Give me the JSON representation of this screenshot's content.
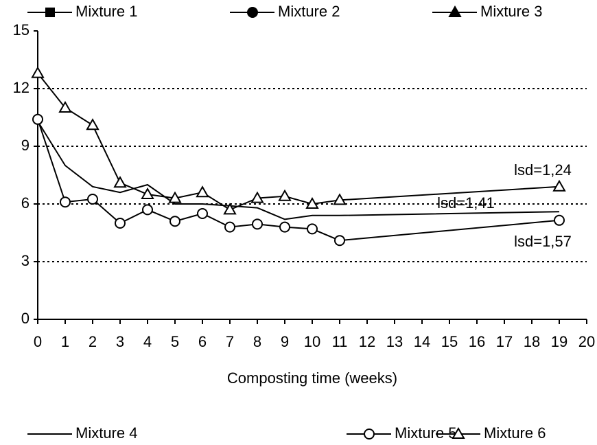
{
  "chart_data": {
    "type": "line",
    "xlabel": "Composting time (weeks)",
    "x": [
      0,
      1,
      2,
      3,
      4,
      5,
      6,
      7,
      8,
      9,
      10,
      11,
      19
    ],
    "series": [
      {
        "name": "Mixture 1",
        "color": "#000000",
        "marker": "square-filled",
        "values": [
          null,
          null,
          null,
          null,
          null,
          null,
          null,
          null,
          null,
          null,
          null,
          null,
          null
        ]
      },
      {
        "name": "Mixture 2",
        "color": "#000000",
        "marker": "circle-filled",
        "values": [
          null,
          null,
          null,
          null,
          null,
          null,
          null,
          null,
          null,
          null,
          null,
          null,
          null
        ]
      },
      {
        "name": "Mixture  3",
        "color": "#000000",
        "marker": "triangle-filled",
        "values": [
          null,
          null,
          null,
          null,
          null,
          null,
          null,
          null,
          null,
          null,
          null,
          null,
          null
        ]
      },
      {
        "name": "Mixture 4",
        "color": "#000000",
        "marker": "none",
        "values": [
          10.3,
          8.0,
          6.9,
          6.6,
          7.0,
          6.0,
          6.0,
          5.9,
          5.8,
          5.2,
          5.4,
          5.4,
          5.6
        ]
      },
      {
        "name": "Mixture 5",
        "color": "#000000",
        "marker": "circle-open",
        "values": [
          10.4,
          6.1,
          6.25,
          5.0,
          5.7,
          5.1,
          5.5,
          4.8,
          4.95,
          4.8,
          4.7,
          4.1,
          5.15
        ]
      },
      {
        "name": "Mixture  6",
        "color": "#000000",
        "marker": "triangle-open",
        "values": [
          12.8,
          11.0,
          10.1,
          7.1,
          6.5,
          6.3,
          6.6,
          5.7,
          6.3,
          6.4,
          6.0,
          6.2,
          6.9
        ]
      }
    ],
    "annotations": [
      {
        "text": "lsd=1,24",
        "x": 18.4,
        "y": 7.7
      },
      {
        "text": "lsd=1,41",
        "x": 15.6,
        "y": 6.0
      },
      {
        "text": "lsd=1,57",
        "x": 18.4,
        "y": 4.0
      }
    ],
    "xlim": [
      0,
      20
    ],
    "xticks": [
      0,
      1,
      2,
      3,
      4,
      5,
      6,
      7,
      8,
      9,
      10,
      11,
      12,
      13,
      14,
      15,
      16,
      17,
      18,
      19,
      20
    ],
    "ylim": [
      0,
      15
    ],
    "yticks": [
      0,
      3,
      6,
      9,
      12,
      15
    ],
    "grid": true
  }
}
